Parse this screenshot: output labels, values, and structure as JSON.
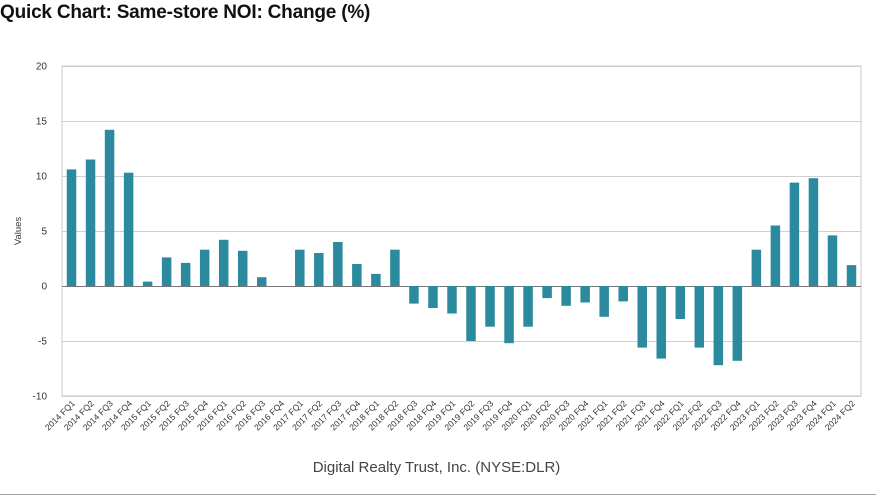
{
  "title": "Quick Chart: Same-store NOI: Change (%)",
  "chart_data": {
    "type": "bar",
    "title": "Quick Chart: Same-store NOI: Change (%)",
    "xlabel": "Digital Realty Trust, Inc. (NYSE:DLR)",
    "ylabel": "Values",
    "ylim": [
      -10,
      20
    ],
    "yticks": [
      -10,
      -5,
      0,
      5,
      10,
      15,
      20
    ],
    "grid": true,
    "bar_color": "#2b8a9d",
    "categories": [
      "2014 FQ1",
      "2014 FQ2",
      "2014 FQ3",
      "2014 FQ4",
      "2015 FQ1",
      "2015 FQ2",
      "2015 FQ3",
      "2015 FQ4",
      "2016 FQ1",
      "2016 FQ2",
      "2016 FQ3",
      "2016 FQ4",
      "2017 FQ1",
      "2017 FQ2",
      "2017 FQ3",
      "2017 FQ4",
      "2018 FQ1",
      "2018 FQ2",
      "2018 FQ3",
      "2018 FQ4",
      "2019 FQ1",
      "2019 FQ2",
      "2019 FQ3",
      "2019 FQ4",
      "2020 FQ1",
      "2020 FQ2",
      "2020 FQ3",
      "2020 FQ4",
      "2021 FQ1",
      "2021 FQ2",
      "2021 FQ3",
      "2021 FQ4",
      "2022 FQ1",
      "2022 FQ2",
      "2022 FQ3",
      "2022 FQ4",
      "2023 FQ1",
      "2023 FQ2",
      "2023 FQ3",
      "2023 FQ4",
      "2024 FQ1",
      "2024 FQ2"
    ],
    "values": [
      10.6,
      11.5,
      14.2,
      10.3,
      0.4,
      2.6,
      2.1,
      3.3,
      4.2,
      3.2,
      0.8,
      0.0,
      3.3,
      3.0,
      4.0,
      2.0,
      1.1,
      3.3,
      -1.6,
      -2.0,
      -2.5,
      -5.0,
      -3.7,
      -5.2,
      -3.7,
      -1.1,
      -1.8,
      -1.5,
      -2.8,
      -1.4,
      -5.6,
      -6.6,
      -3.0,
      -5.6,
      -7.2,
      -6.8,
      3.3,
      5.5,
      9.4,
      9.8,
      4.6,
      1.9
    ]
  }
}
